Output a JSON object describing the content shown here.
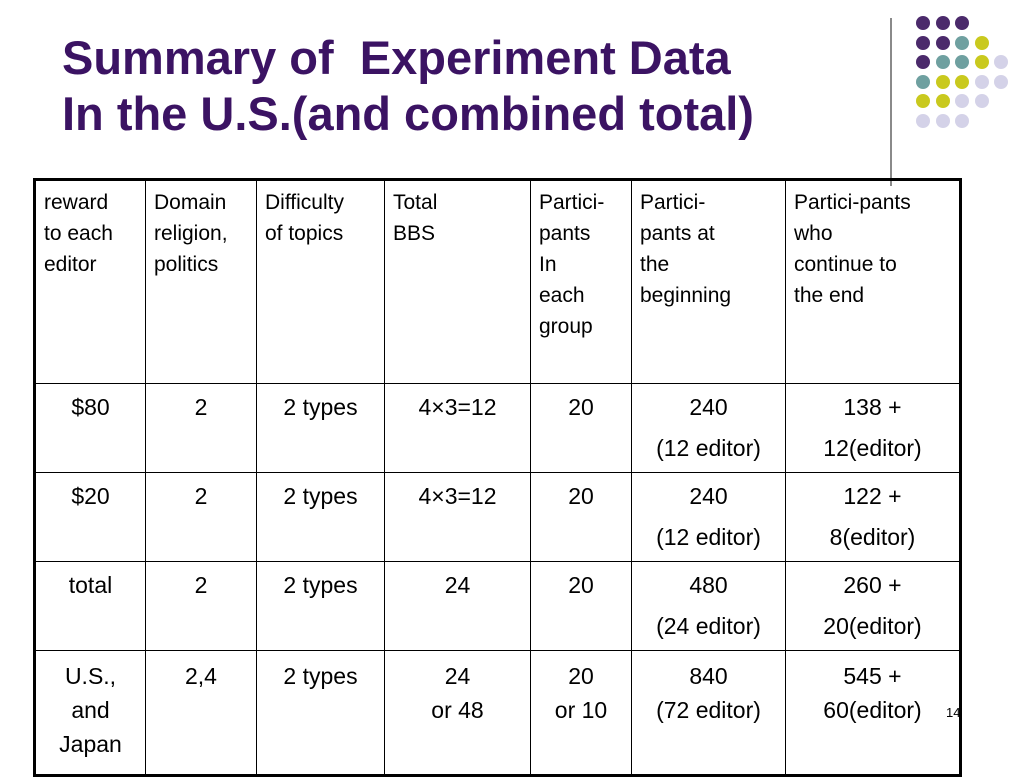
{
  "title": {
    "line1": "Summary of  Experiment Data",
    "line2": "In the U.S.(and combined total)"
  },
  "decoration": {
    "colors": {
      "purple": "#4b2a6b",
      "teal": "#6fa0a0",
      "yellow": "#c9c91e",
      "lavender": "#d4d2e8"
    },
    "dot_grid": [
      [
        "purple",
        "purple",
        "purple",
        null,
        null
      ],
      [
        "purple",
        "purple",
        "teal",
        "yellow",
        null
      ],
      [
        "purple",
        "teal",
        "teal",
        "yellow",
        "lavender"
      ],
      [
        "teal",
        "yellow",
        "yellow",
        "lavender",
        "lavender"
      ],
      [
        "yellow",
        "yellow",
        "lavender",
        "lavender",
        null
      ],
      [
        "lavender",
        "lavender",
        "lavender",
        null,
        null
      ]
    ]
  },
  "table": {
    "headers": [
      [
        "reward",
        "to each",
        "editor"
      ],
      [
        "Domain",
        "religion,",
        "politics"
      ],
      [
        "Difficulty",
        "of topics"
      ],
      [
        "Total",
        "BBS"
      ],
      [
        "Partici-",
        "pants",
        "In",
        "each",
        "group"
      ],
      [
        "Partici-",
        "pants at",
        "the",
        "beginning"
      ],
      [
        "Partici-pants",
        "who",
        "continue to",
        "the end"
      ]
    ],
    "rows": [
      [
        [
          "$80"
        ],
        [
          "2"
        ],
        [
          "2 types"
        ],
        [
          "4×3=12"
        ],
        [
          "20"
        ],
        [
          "240",
          "(12 editor)"
        ],
        [
          "138 +",
          "12(editor)"
        ]
      ],
      [
        [
          "$20"
        ],
        [
          "2"
        ],
        [
          "2 types"
        ],
        [
          "4×3=12"
        ],
        [
          "20"
        ],
        [
          "240",
          "(12 editor)"
        ],
        [
          "122 +",
          "8(editor)"
        ]
      ],
      [
        [
          "total"
        ],
        [
          "2"
        ],
        [
          "2 types"
        ],
        [
          "24"
        ],
        [
          "20"
        ],
        [
          "480",
          "(24 editor)"
        ],
        [
          "260 +",
          "20(editor)"
        ]
      ],
      [
        [
          "U.S.,",
          "and",
          "Japan"
        ],
        [
          "2,4"
        ],
        [
          "2 types"
        ],
        [
          "24",
          "or 48"
        ],
        [
          "20",
          "or 10"
        ],
        [
          "840",
          "(72 editor)"
        ],
        [
          "545 +",
          "60(editor)"
        ]
      ]
    ]
  },
  "page_number": "14"
}
